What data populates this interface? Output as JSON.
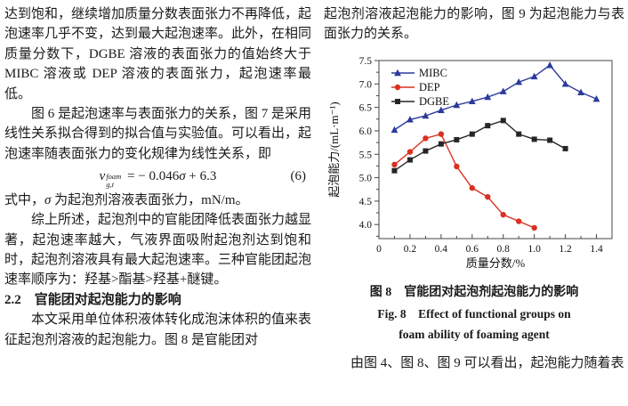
{
  "left_column": {
    "p1": "达到饱和，继续增加质量分数表面张力不再降低，起泡速率几乎不变，达到最大起泡速率。此外，在相同质量分数下，DGBE 溶液的表面张力的值始终大于 MIBC 溶液或 DEP 溶液的表面张力，起泡速率最低。",
    "p2": "图 6 是起泡速率与表面张力的关系，图 7 是采用线性关系拟合得到的拟合值与实验值。可以看出，起泡速率随表面张力的变化规律为线性关系，即",
    "equation": {
      "var": "v",
      "sup": "foam",
      "sub": "g,t",
      "mid": " = − 0.046",
      "sigma": "σ",
      "tail": " + 6.3",
      "number": "(6)"
    },
    "p3_pre": "式中，",
    "p3_sigma": "σ",
    "p3_rest": " 为起泡剂溶液表面张力，mN/m。",
    "p4": "综上所述，起泡剂中的官能团降低表面张力越显著，起泡速率越大，气液界面吸附起泡剂达到饱和时，起泡剂溶液具有最大起泡速率。三种官能团起泡速率顺序为：羟基>酯基>羟基+醚键。",
    "heading": "2.2　官能团对起泡能力的影响",
    "p5": "本文采用单位体积液体转化成泡沫体积的值来表征起泡剂溶液的起泡能力。图 8 是官能团对"
  },
  "right_column": {
    "p1": "起泡剂溶液起泡能力的影响，图 9 为起泡能力与表面张力的关系。",
    "figure_caption_zh": "图 8　官能团对起泡剂起泡能力的影响",
    "figure_caption_en_1": "Fig. 8　Effect of functional groups on",
    "figure_caption_en_2": "foam ability of foaming agent",
    "p2": "由图 4、图 8、图 9 可以看出，起泡能力随着表"
  },
  "chart_data": {
    "type": "line",
    "title": "",
    "xlabel": "质量分数/%",
    "ylabel": "起泡能力/(mL·m⁻¹)",
    "xlim": [
      0,
      1.5
    ],
    "ylim": [
      3.7,
      7.5
    ],
    "xticks": [
      0,
      0.2,
      0.4,
      0.6,
      0.8,
      1.0,
      1.2,
      1.4
    ],
    "yticks": [
      4.0,
      4.5,
      5.0,
      5.5,
      6.0,
      6.5,
      7.0,
      7.5
    ],
    "grid": false,
    "legend_position": "top-left",
    "frame_color": "#444444",
    "series": [
      {
        "name": "MIBC",
        "color": "#2b3a9c",
        "marker": "triangle",
        "x": [
          0.1,
          0.2,
          0.3,
          0.4,
          0.5,
          0.6,
          0.7,
          0.8,
          0.9,
          1.0,
          1.1,
          1.2,
          1.3,
          1.4
        ],
        "y": [
          6.02,
          6.24,
          6.32,
          6.44,
          6.55,
          6.63,
          6.72,
          6.84,
          7.04,
          7.16,
          7.4,
          7.0,
          6.82,
          6.68
        ]
      },
      {
        "name": "DEP",
        "color": "#da3022",
        "marker": "circle",
        "x": [
          0.1,
          0.2,
          0.3,
          0.4,
          0.5,
          0.6,
          0.7,
          0.8,
          0.9,
          1.0
        ],
        "y": [
          5.28,
          5.55,
          5.84,
          5.93,
          5.24,
          4.78,
          4.59,
          4.21,
          4.07,
          3.93
        ]
      },
      {
        "name": "DGBE",
        "color": "#262626",
        "marker": "square",
        "x": [
          0.1,
          0.2,
          0.3,
          0.4,
          0.5,
          0.6,
          0.7,
          0.8,
          0.9,
          1.0,
          1.1,
          1.2
        ],
        "y": [
          5.15,
          5.38,
          5.57,
          5.72,
          5.81,
          5.93,
          6.11,
          6.22,
          5.93,
          5.82,
          5.8,
          5.62
        ]
      }
    ]
  }
}
